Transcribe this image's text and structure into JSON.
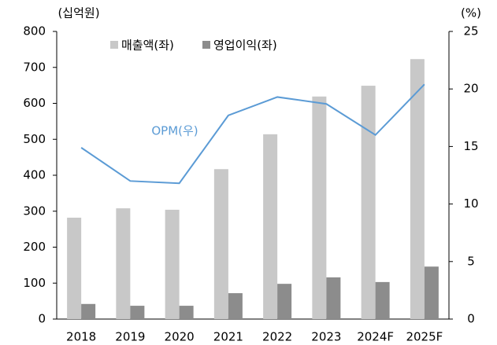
{
  "chart_data": {
    "type": "bar_line",
    "y_label": "(십억원)",
    "y2_label": "(%)",
    "categories": [
      "2018",
      "2019",
      "2020",
      "2021",
      "2022",
      "2023",
      "2024F",
      "2025F"
    ],
    "series": [
      {
        "name": "매출액(좌)",
        "color": "#c8c8c8",
        "type": "bar",
        "values": [
          282,
          308,
          304,
          417,
          514,
          619,
          649,
          723
        ]
      },
      {
        "name": "영업이익(좌)",
        "color": "#8c8c8c",
        "type": "bar",
        "values": [
          42,
          37,
          37,
          72,
          98,
          116,
          103,
          146
        ]
      },
      {
        "name": "OPM(우)",
        "color": "#5b9bd5",
        "type": "line",
        "axis": "y2",
        "values": [
          14.9,
          12.0,
          11.8,
          17.7,
          19.3,
          18.7,
          16.0,
          20.4
        ]
      }
    ],
    "ylim": [
      0,
      800
    ],
    "yticks": [
      0,
      100,
      200,
      300,
      400,
      500,
      600,
      700,
      800
    ],
    "y2lim": [
      0,
      25
    ],
    "y2ticks": [
      0,
      5,
      10,
      15,
      20,
      25
    ]
  }
}
